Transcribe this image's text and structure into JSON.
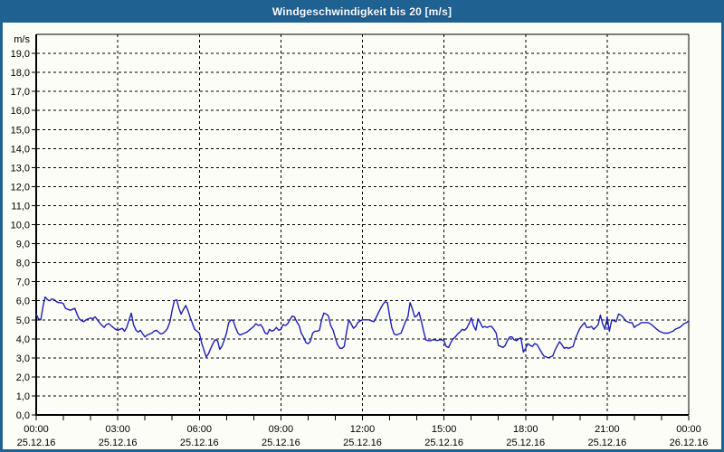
{
  "window": {
    "title": "Windgeschwindigkeit bis 20 [m/s]"
  },
  "colors": {
    "titlebar": "#1f6191",
    "frame": "#1f6191",
    "background": "#fcfdf6",
    "grid": "#000000",
    "axis": "#000000",
    "text": "#000000",
    "line": "#1e1eb4"
  },
  "chart_data": {
    "type": "line",
    "title": "Windgeschwindigkeit bis 20 [m/s]",
    "ylabel": "m/s",
    "xlabel": "",
    "ylim": [
      0,
      20
    ],
    "xlim": [
      0,
      24
    ],
    "grid": "dashed",
    "legend": "none",
    "minor_x_tick_hours": 1,
    "ytick_labels": [
      "0,0",
      "1,0",
      "2,0",
      "3,0",
      "4,0",
      "5,0",
      "6,0",
      "7,0",
      "8,0",
      "9,0",
      "10,0",
      "11,0",
      "12,0",
      "13,0",
      "14,0",
      "15,0",
      "16,0",
      "17,0",
      "18,0",
      "19,0"
    ],
    "xticks": [
      {
        "hour": 0,
        "time": "00:00",
        "date": "25.12.16"
      },
      {
        "hour": 3,
        "time": "03:00",
        "date": "25.12.16"
      },
      {
        "hour": 6,
        "time": "06:00",
        "date": "25.12.16"
      },
      {
        "hour": 9,
        "time": "09:00",
        "date": "25.12.16"
      },
      {
        "hour": 12,
        "time": "12:00",
        "date": "25.12.16"
      },
      {
        "hour": 15,
        "time": "15:00",
        "date": "25.12.16"
      },
      {
        "hour": 18,
        "time": "18:00",
        "date": "25.12.16"
      },
      {
        "hour": 21,
        "time": "21:00",
        "date": "25.12.16"
      },
      {
        "hour": 24,
        "time": "00:00",
        "date": "26.12.16"
      }
    ],
    "series": [
      {
        "name": "Windgeschwindigkeit",
        "unit": "m/s",
        "points": [
          [
            0,
            5.3
          ],
          [
            0.08,
            5.05
          ],
          [
            0.17,
            5.0
          ],
          [
            0.25,
            5.7
          ],
          [
            0.33,
            6.2
          ],
          [
            0.42,
            6.05
          ],
          [
            0.5,
            6.0
          ],
          [
            0.58,
            6.1
          ],
          [
            0.67,
            6.05
          ],
          [
            0.75,
            5.95
          ],
          [
            0.83,
            5.9
          ],
          [
            0.92,
            5.9
          ],
          [
            1.0,
            5.85
          ],
          [
            1.08,
            5.6
          ],
          [
            1.17,
            5.55
          ],
          [
            1.25,
            5.5
          ],
          [
            1.33,
            5.55
          ],
          [
            1.42,
            5.6
          ],
          [
            1.5,
            5.3
          ],
          [
            1.58,
            5.05
          ],
          [
            1.67,
            4.95
          ],
          [
            1.75,
            4.9
          ],
          [
            1.83,
            5.0
          ],
          [
            1.92,
            5.05
          ],
          [
            2.0,
            5.1
          ],
          [
            2.08,
            5.05
          ],
          [
            2.17,
            5.15
          ],
          [
            2.25,
            5.0
          ],
          [
            2.33,
            4.85
          ],
          [
            2.42,
            4.7
          ],
          [
            2.5,
            4.6
          ],
          [
            2.58,
            4.75
          ],
          [
            2.67,
            4.8
          ],
          [
            2.75,
            4.7
          ],
          [
            2.83,
            4.6
          ],
          [
            2.92,
            4.5
          ],
          [
            3.0,
            4.45
          ],
          [
            3.08,
            4.5
          ],
          [
            3.17,
            4.55
          ],
          [
            3.25,
            4.4
          ],
          [
            3.33,
            4.6
          ],
          [
            3.42,
            5.0
          ],
          [
            3.5,
            5.35
          ],
          [
            3.58,
            4.75
          ],
          [
            3.67,
            4.45
          ],
          [
            3.75,
            4.35
          ],
          [
            3.83,
            4.45
          ],
          [
            3.92,
            4.25
          ],
          [
            4.0,
            4.1
          ],
          [
            4.08,
            4.2
          ],
          [
            4.17,
            4.25
          ],
          [
            4.25,
            4.3
          ],
          [
            4.33,
            4.4
          ],
          [
            4.42,
            4.45
          ],
          [
            4.5,
            4.35
          ],
          [
            4.58,
            4.25
          ],
          [
            4.67,
            4.3
          ],
          [
            4.75,
            4.4
          ],
          [
            4.83,
            4.55
          ],
          [
            4.92,
            4.9
          ],
          [
            5.0,
            5.5
          ],
          [
            5.08,
            6.0
          ],
          [
            5.17,
            6.05
          ],
          [
            5.25,
            5.6
          ],
          [
            5.33,
            5.3
          ],
          [
            5.42,
            5.55
          ],
          [
            5.5,
            5.75
          ],
          [
            5.58,
            5.5
          ],
          [
            5.67,
            5.1
          ],
          [
            5.75,
            4.8
          ],
          [
            5.83,
            4.5
          ],
          [
            5.92,
            4.4
          ],
          [
            6.0,
            4.3
          ],
          [
            6.08,
            3.8
          ],
          [
            6.17,
            3.4
          ],
          [
            6.25,
            3.05
          ],
          [
            6.33,
            3.2
          ],
          [
            6.42,
            3.5
          ],
          [
            6.5,
            3.75
          ],
          [
            6.58,
            3.95
          ],
          [
            6.67,
            3.9
          ],
          [
            6.75,
            3.45
          ],
          [
            6.83,
            3.6
          ],
          [
            6.92,
            3.95
          ],
          [
            7.0,
            4.3
          ],
          [
            7.08,
            4.85
          ],
          [
            7.17,
            5.0
          ],
          [
            7.25,
            4.95
          ],
          [
            7.33,
            4.6
          ],
          [
            7.42,
            4.3
          ],
          [
            7.5,
            4.2
          ],
          [
            7.58,
            4.25
          ],
          [
            7.67,
            4.3
          ],
          [
            7.75,
            4.35
          ],
          [
            7.83,
            4.45
          ],
          [
            7.92,
            4.55
          ],
          [
            8.0,
            4.65
          ],
          [
            8.08,
            4.8
          ],
          [
            8.17,
            4.7
          ],
          [
            8.25,
            4.75
          ],
          [
            8.33,
            4.6
          ],
          [
            8.42,
            4.3
          ],
          [
            8.5,
            4.25
          ],
          [
            8.58,
            4.5
          ],
          [
            8.67,
            4.4
          ],
          [
            8.75,
            4.45
          ],
          [
            8.83,
            4.6
          ],
          [
            8.92,
            4.45
          ],
          [
            9.0,
            4.5
          ],
          [
            9.08,
            4.75
          ],
          [
            9.17,
            4.7
          ],
          [
            9.25,
            4.8
          ],
          [
            9.33,
            5.0
          ],
          [
            9.42,
            5.2
          ],
          [
            9.5,
            5.15
          ],
          [
            9.58,
            4.9
          ],
          [
            9.67,
            4.7
          ],
          [
            9.75,
            4.3
          ],
          [
            9.83,
            4.1
          ],
          [
            9.92,
            3.8
          ],
          [
            10.0,
            3.75
          ],
          [
            10.08,
            3.85
          ],
          [
            10.17,
            4.3
          ],
          [
            10.25,
            4.4
          ],
          [
            10.33,
            4.4
          ],
          [
            10.42,
            4.45
          ],
          [
            10.5,
            5.0
          ],
          [
            10.58,
            5.35
          ],
          [
            10.67,
            5.3
          ],
          [
            10.75,
            5.2
          ],
          [
            10.83,
            4.7
          ],
          [
            10.92,
            4.45
          ],
          [
            11.0,
            4.05
          ],
          [
            11.08,
            3.7
          ],
          [
            11.17,
            3.5
          ],
          [
            11.25,
            3.5
          ],
          [
            11.33,
            3.6
          ],
          [
            11.42,
            4.4
          ],
          [
            11.5,
            5.0
          ],
          [
            11.58,
            4.8
          ],
          [
            11.67,
            4.55
          ],
          [
            11.75,
            4.65
          ],
          [
            11.83,
            4.85
          ],
          [
            11.92,
            4.95
          ],
          [
            12.0,
            5.0
          ],
          [
            12.08,
            5.0
          ],
          [
            12.17,
            5.0
          ],
          [
            12.25,
            5.0
          ],
          [
            12.33,
            4.95
          ],
          [
            12.42,
            4.9
          ],
          [
            12.5,
            5.1
          ],
          [
            12.58,
            5.35
          ],
          [
            12.67,
            5.6
          ],
          [
            12.75,
            5.8
          ],
          [
            12.83,
            5.95
          ],
          [
            12.92,
            5.9
          ],
          [
            13.0,
            5.2
          ],
          [
            13.08,
            4.6
          ],
          [
            13.17,
            4.25
          ],
          [
            13.25,
            4.2
          ],
          [
            13.33,
            4.25
          ],
          [
            13.42,
            4.3
          ],
          [
            13.5,
            4.6
          ],
          [
            13.58,
            4.9
          ],
          [
            13.67,
            5.15
          ],
          [
            13.75,
            5.9
          ],
          [
            13.83,
            5.6
          ],
          [
            13.92,
            5.15
          ],
          [
            14.0,
            5.2
          ],
          [
            14.08,
            5.4
          ],
          [
            14.17,
            4.9
          ],
          [
            14.25,
            4.4
          ],
          [
            14.33,
            3.95
          ],
          [
            14.42,
            3.9
          ],
          [
            14.5,
            3.9
          ],
          [
            14.58,
            3.95
          ],
          [
            14.67,
            3.95
          ],
          [
            14.75,
            3.9
          ],
          [
            14.83,
            3.95
          ],
          [
            14.92,
            3.95
          ],
          [
            15.0,
            3.9
          ],
          [
            15.08,
            3.6
          ],
          [
            15.17,
            3.55
          ],
          [
            15.25,
            3.8
          ],
          [
            15.33,
            4.0
          ],
          [
            15.42,
            4.1
          ],
          [
            15.5,
            4.25
          ],
          [
            15.58,
            4.35
          ],
          [
            15.67,
            4.5
          ],
          [
            15.75,
            4.45
          ],
          [
            15.83,
            4.55
          ],
          [
            15.92,
            4.8
          ],
          [
            16.0,
            5.1
          ],
          [
            16.08,
            4.7
          ],
          [
            16.17,
            4.45
          ],
          [
            16.25,
            5.05
          ],
          [
            16.33,
            4.85
          ],
          [
            16.42,
            4.6
          ],
          [
            16.5,
            4.65
          ],
          [
            16.58,
            4.6
          ],
          [
            16.67,
            4.65
          ],
          [
            16.75,
            4.65
          ],
          [
            16.83,
            4.5
          ],
          [
            16.92,
            4.3
          ],
          [
            17.0,
            3.65
          ],
          [
            17.08,
            3.6
          ],
          [
            17.17,
            3.55
          ],
          [
            17.25,
            3.65
          ],
          [
            17.33,
            3.9
          ],
          [
            17.42,
            4.1
          ],
          [
            17.5,
            4.1
          ],
          [
            17.58,
            3.95
          ],
          [
            17.67,
            3.9
          ],
          [
            17.75,
            4.0
          ],
          [
            17.83,
            4.05
          ],
          [
            17.92,
            3.3
          ],
          [
            18.0,
            3.5
          ],
          [
            18.08,
            3.75
          ],
          [
            18.17,
            3.65
          ],
          [
            18.25,
            3.6
          ],
          [
            18.33,
            3.75
          ],
          [
            18.42,
            3.7
          ],
          [
            18.5,
            3.5
          ],
          [
            18.58,
            3.3
          ],
          [
            18.67,
            3.1
          ],
          [
            18.75,
            3.05
          ],
          [
            18.83,
            3.0
          ],
          [
            18.92,
            3.05
          ],
          [
            19.0,
            3.1
          ],
          [
            19.08,
            3.4
          ],
          [
            19.17,
            3.65
          ],
          [
            19.25,
            3.85
          ],
          [
            19.33,
            3.7
          ],
          [
            19.42,
            3.5
          ],
          [
            19.5,
            3.55
          ],
          [
            19.58,
            3.5
          ],
          [
            19.67,
            3.55
          ],
          [
            19.75,
            3.6
          ],
          [
            19.83,
            4.0
          ],
          [
            19.92,
            4.3
          ],
          [
            20.0,
            4.55
          ],
          [
            20.08,
            4.7
          ],
          [
            20.17,
            4.85
          ],
          [
            20.25,
            4.6
          ],
          [
            20.33,
            4.6
          ],
          [
            20.42,
            4.65
          ],
          [
            20.5,
            4.5
          ],
          [
            20.58,
            4.6
          ],
          [
            20.67,
            4.75
          ],
          [
            20.75,
            5.25
          ],
          [
            20.83,
            4.8
          ],
          [
            20.92,
            4.5
          ],
          [
            21.0,
            5.15
          ],
          [
            21.08,
            4.4
          ],
          [
            21.17,
            5.0
          ],
          [
            21.25,
            4.95
          ],
          [
            21.33,
            4.9
          ],
          [
            21.42,
            5.3
          ],
          [
            21.5,
            5.25
          ],
          [
            21.58,
            5.15
          ],
          [
            21.67,
            4.95
          ],
          [
            21.75,
            4.9
          ],
          [
            21.83,
            4.85
          ],
          [
            21.92,
            4.85
          ],
          [
            22.0,
            4.6
          ],
          [
            22.08,
            4.7
          ],
          [
            22.17,
            4.75
          ],
          [
            22.25,
            4.85
          ],
          [
            22.33,
            4.85
          ],
          [
            22.42,
            4.85
          ],
          [
            22.5,
            4.85
          ],
          [
            22.58,
            4.8
          ],
          [
            22.67,
            4.7
          ],
          [
            22.75,
            4.6
          ],
          [
            22.83,
            4.5
          ],
          [
            22.92,
            4.4
          ],
          [
            23.0,
            4.35
          ],
          [
            23.08,
            4.3
          ],
          [
            23.17,
            4.3
          ],
          [
            23.25,
            4.3
          ],
          [
            23.33,
            4.35
          ],
          [
            23.42,
            4.4
          ],
          [
            23.5,
            4.5
          ],
          [
            23.58,
            4.55
          ],
          [
            23.67,
            4.6
          ],
          [
            23.75,
            4.7
          ],
          [
            23.83,
            4.8
          ],
          [
            23.92,
            4.85
          ],
          [
            24.0,
            4.95
          ]
        ]
      }
    ]
  }
}
